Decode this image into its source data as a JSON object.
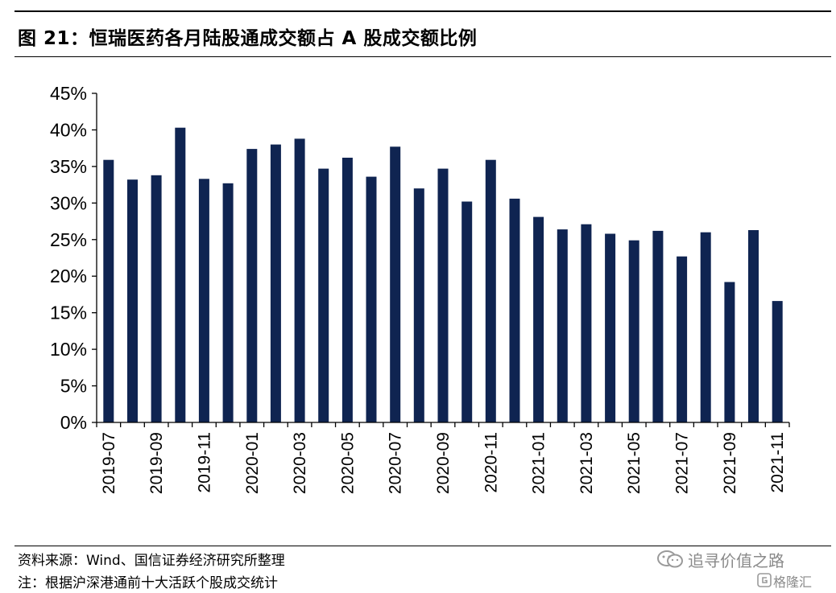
{
  "title": "图 21：恒瑞医药各月陆股通成交额占 A 股成交额比例",
  "source_note": "资料来源：Wind、国信证券经济研究所整理",
  "comment_note": "注：根据沪深港通前十大活跃个股成交统计",
  "watermark": {
    "name": "追寻价值之路",
    "site": "格隆汇",
    "icons": [
      "wechat-icon",
      "gelonghui-logo-icon"
    ]
  },
  "colors": {
    "bar": "#0f2451",
    "axis": "#000000"
  },
  "chart_data": {
    "type": "bar",
    "title": "",
    "xlabel": "",
    "ylabel": "",
    "ylim": [
      0,
      45
    ],
    "y_unit": "%",
    "y_ticks": [
      "0%",
      "5%",
      "10%",
      "15%",
      "20%",
      "25%",
      "30%",
      "35%",
      "40%",
      "45%"
    ],
    "y_tick_values": [
      0,
      5,
      10,
      15,
      20,
      25,
      30,
      35,
      40,
      45
    ],
    "grid": false,
    "legend": "none",
    "categories": [
      "2019-07",
      "2019-08",
      "2019-09",
      "2019-10",
      "2019-11",
      "2019-12",
      "2020-01",
      "2020-02",
      "2020-03",
      "2020-04",
      "2020-05",
      "2020-06",
      "2020-07",
      "2020-08",
      "2020-09",
      "2020-10",
      "2020-11",
      "2020-12",
      "2021-01",
      "2021-02",
      "2021-03",
      "2021-04",
      "2021-05",
      "2021-06",
      "2021-07",
      "2021-08",
      "2021-09",
      "2021-10",
      "2021-11"
    ],
    "x_tick_labels": [
      "2019-07",
      "2019-09",
      "2019-11",
      "2020-01",
      "2020-03",
      "2020-05",
      "2020-07",
      "2020-09",
      "2020-11",
      "2021-01",
      "2021-03",
      "2021-05",
      "2021-07",
      "2021-09",
      "2021-11"
    ],
    "values": [
      35.9,
      33.2,
      33.8,
      40.3,
      33.3,
      32.7,
      37.4,
      38.0,
      38.8,
      34.7,
      36.2,
      33.6,
      37.7,
      32.0,
      34.7,
      30.2,
      35.9,
      30.6,
      28.1,
      26.4,
      27.1,
      25.8,
      24.9,
      26.2,
      22.7,
      26.0,
      19.2,
      26.3,
      16.6
    ]
  }
}
